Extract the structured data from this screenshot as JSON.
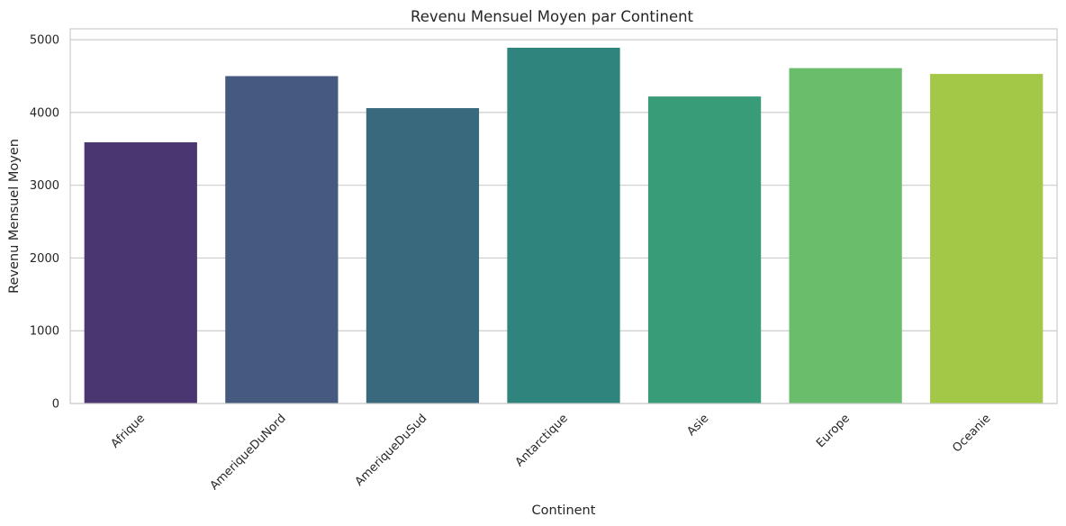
{
  "chart_data": {
    "type": "bar",
    "title": "Revenu Mensuel Moyen par Continent",
    "xlabel": "Continent",
    "ylabel": "Revenu Mensuel Moyen",
    "categories": [
      "Afrique",
      "AmeriqueDuNord",
      "AmeriqueDuSud",
      "Antarctique",
      "Asie",
      "Europe",
      "Oceanie"
    ],
    "values": [
      3590,
      4500,
      4060,
      4890,
      4220,
      4610,
      4530
    ],
    "colors": [
      "#4a3671",
      "#46597f",
      "#38697c",
      "#2f857d",
      "#389c78",
      "#6abd6b",
      "#a3c746"
    ],
    "ylim": [
      0,
      5150
    ],
    "yticks": [
      0,
      1000,
      2000,
      3000,
      4000,
      5000
    ],
    "grid": true,
    "legend": "none"
  }
}
